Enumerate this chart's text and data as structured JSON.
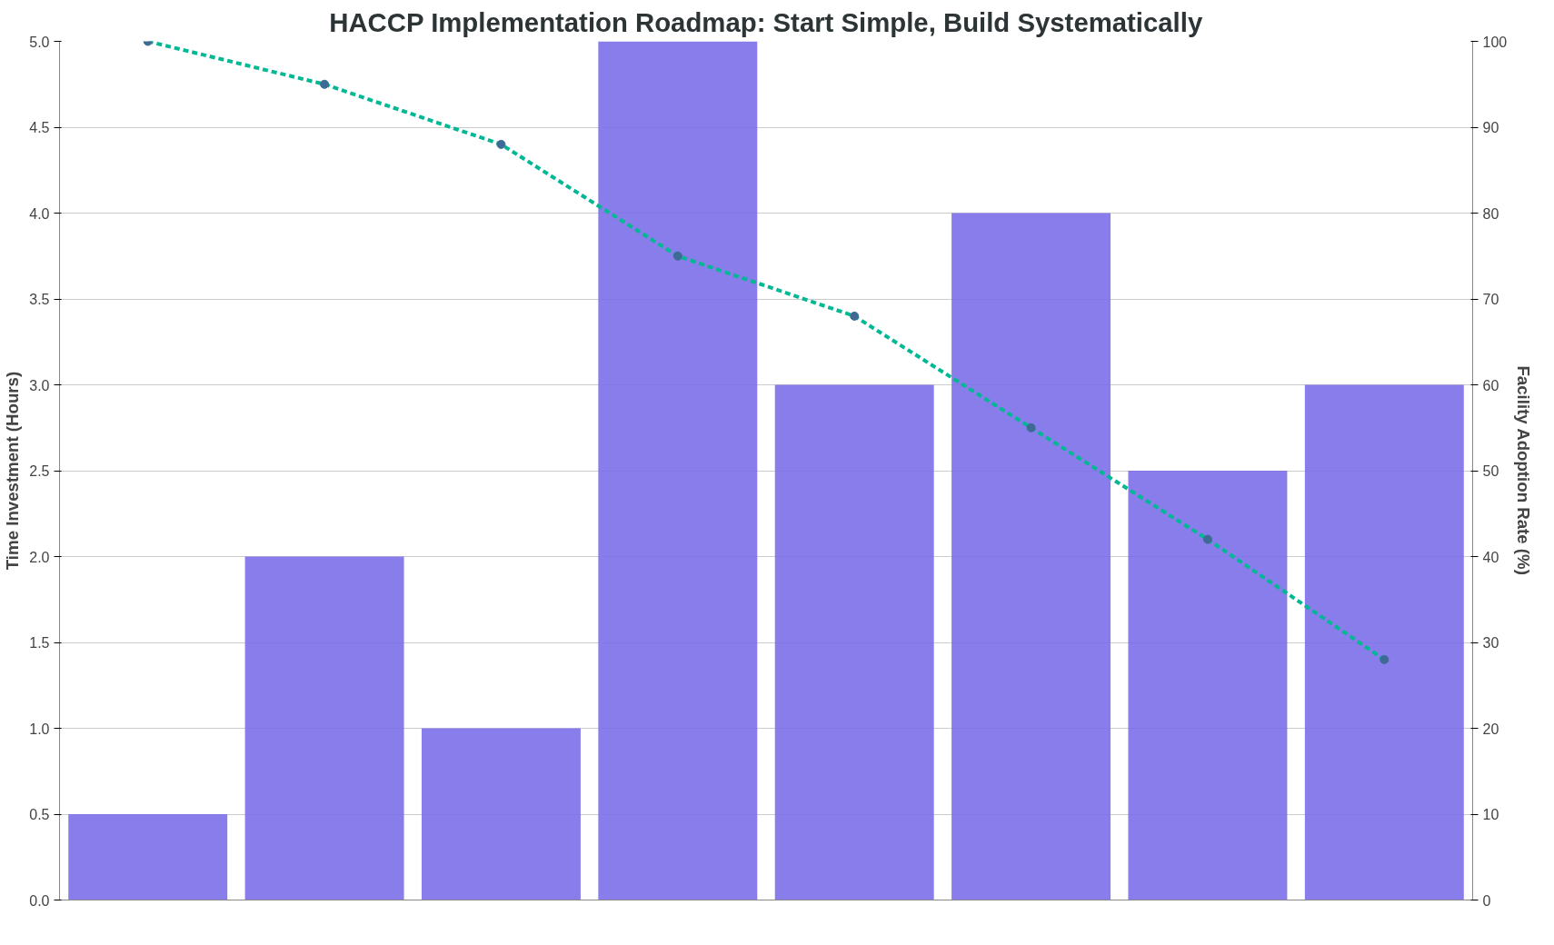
{
  "chart_data": {
    "type": "bar",
    "title": "HACCP Implementation Roadmap: Start Simple, Build Systematically",
    "categories": [
      null,
      null,
      null,
      null,
      null,
      null,
      null,
      null
    ],
    "ylabel": "Time Investment (Hours)",
    "y2label": "Facility Adoption Rate (%)",
    "series": [
      {
        "color": "#7b6fe8",
        "values": [
          0.5,
          2,
          1,
          5,
          3,
          4,
          2.5,
          3
        ]
      },
      {
        "type": "line",
        "axis": "y2",
        "color": "#00b894",
        "line_style": "dashed",
        "marker": "circle",
        "values": [
          100,
          95,
          88,
          75,
          68,
          55,
          42,
          28
        ]
      }
    ],
    "ylim": [
      0,
      5
    ],
    "yticks": [
      {
        "value": 0,
        "label": "0.0"
      },
      0.5,
      {
        "value": 1,
        "label": "1.0"
      },
      1.5,
      {
        "value": 2,
        "label": "2.0"
      },
      2.5,
      {
        "value": 3,
        "label": "3.0"
      },
      3.5,
      {
        "value": 4,
        "label": "4.0"
      },
      4.5,
      {
        "value": 5,
        "label": "5.0"
      }
    ],
    "y2lim": [
      0,
      100
    ],
    "y2ticks": [
      0,
      10,
      20,
      30,
      40,
      50,
      60,
      70,
      80,
      90,
      100
    ],
    "grid": "y"
  }
}
